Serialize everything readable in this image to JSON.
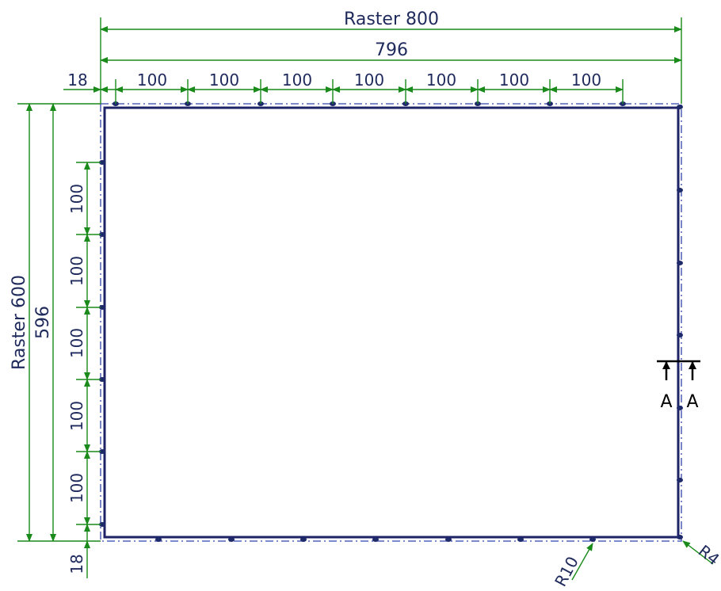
{
  "drawing": {
    "dims_top": {
      "raster": "Raster 800",
      "overall": "796",
      "offset": "18",
      "spacings": [
        "100",
        "100",
        "100",
        "100",
        "100",
        "100",
        "100"
      ]
    },
    "dims_left": {
      "raster": "Raster 600",
      "overall": "596",
      "offset": "18",
      "spacings": [
        "100",
        "100",
        "100",
        "100",
        "100"
      ]
    },
    "radii": {
      "r10": "R10",
      "r4": "R4"
    },
    "section": {
      "left": "A",
      "right": "A"
    },
    "colors": {
      "dimension": "#1a8a1a",
      "frame": "#1e2266",
      "text": "#1f2a5c"
    }
  }
}
